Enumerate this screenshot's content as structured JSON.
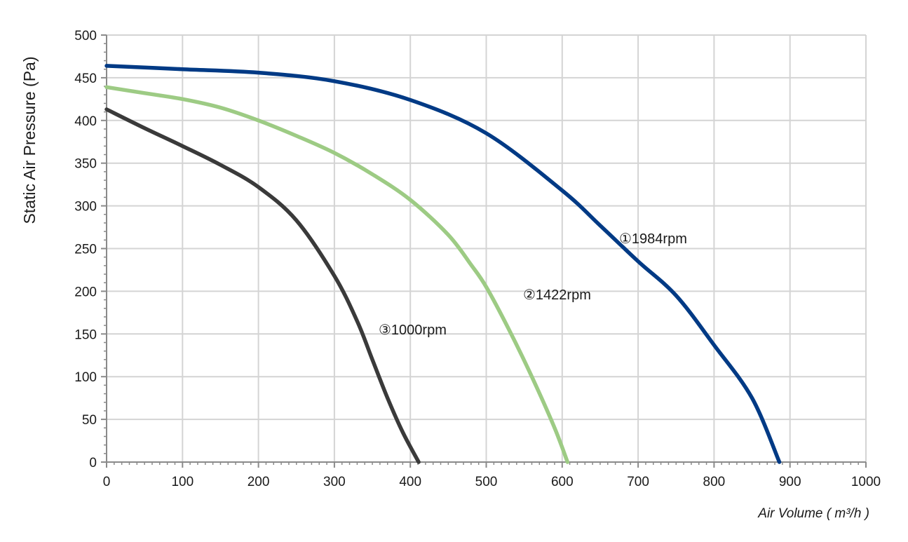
{
  "chart_data": {
    "type": "line",
    "title": "",
    "xlabel": "Air Volume ( m³/h )",
    "ylabel": "Static Air Pressure  (Pa)",
    "xlim": [
      0,
      1000
    ],
    "ylim": [
      0,
      500
    ],
    "xticks": [
      0,
      100,
      200,
      300,
      400,
      500,
      600,
      700,
      800,
      900,
      1000
    ],
    "yticks": [
      0,
      50,
      100,
      150,
      200,
      250,
      300,
      350,
      400,
      450,
      500
    ],
    "grid": true,
    "series": [
      {
        "name": "①1984rpm",
        "color": "#003A85",
        "x": [
          0,
          100,
          200,
          300,
          400,
          500,
          600,
          650,
          700,
          750,
          800,
          850,
          886
        ],
        "y": [
          464,
          460,
          456,
          446,
          424,
          385,
          318,
          277,
          235,
          195,
          137,
          75,
          0
        ]
      },
      {
        "name": "②1422rpm",
        "color": "#9DCB84",
        "x": [
          0,
          50,
          100,
          150,
          200,
          250,
          300,
          350,
          400,
          450,
          480,
          500,
          530,
          560,
          590,
          607
        ],
        "y": [
          439,
          432,
          425,
          415,
          400,
          382,
          362,
          337,
          307,
          266,
          231,
          205,
          155,
          100,
          40,
          0
        ]
      },
      {
        "name": "③1000rpm",
        "color": "#3A3A3A",
        "x": [
          0,
          50,
          100,
          150,
          200,
          250,
          300,
          330,
          350,
          370,
          390,
          411
        ],
        "y": [
          413,
          391,
          370,
          348,
          322,
          283,
          218,
          165,
          120,
          75,
          35,
          0
        ]
      }
    ],
    "annotations": [
      {
        "text": "①1984rpm",
        "series": 0
      },
      {
        "text": "②1422rpm",
        "series": 1
      },
      {
        "text": "③1000rpm",
        "series": 2
      }
    ]
  }
}
